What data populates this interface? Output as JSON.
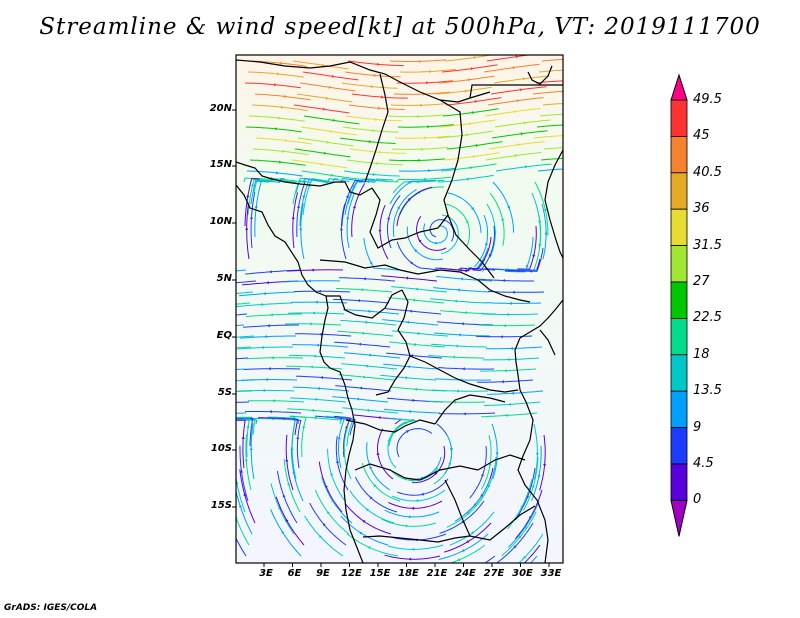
{
  "title": "Streamline & wind speed[kt] at 500hPa, VT: 2019111700",
  "credit": "GrADS: IGES/COLA",
  "lat_labels": [
    "20N",
    "15N",
    "10N",
    "5N",
    "EQ",
    "5S",
    "10S",
    "15S"
  ],
  "lon_labels": [
    "3E",
    "6E",
    "9E",
    "12E",
    "15E",
    "18E",
    "21E",
    "24E",
    "27E",
    "30E",
    "33E"
  ],
  "colorbar": {
    "labels": [
      "49.5",
      "45",
      "40.5",
      "36",
      "31.5",
      "27",
      "22.5",
      "18",
      "13.5",
      "9",
      "4.5",
      "0"
    ],
    "colors": [
      "#ff0087",
      "#ff3232",
      "#f5822d",
      "#e6aa28",
      "#e6dc32",
      "#a0e632",
      "#00c800",
      "#00dc8c",
      "#00c8c8",
      "#00a0ff",
      "#1e3cff",
      "#5a00dc",
      "#a000c8"
    ]
  },
  "map": {
    "projection": "lat-lon",
    "lon_range": [
      0,
      35
    ],
    "lat_range": [
      -20,
      25
    ],
    "variable": "streamline and wind speed at 500hPa",
    "units": "kt"
  }
}
